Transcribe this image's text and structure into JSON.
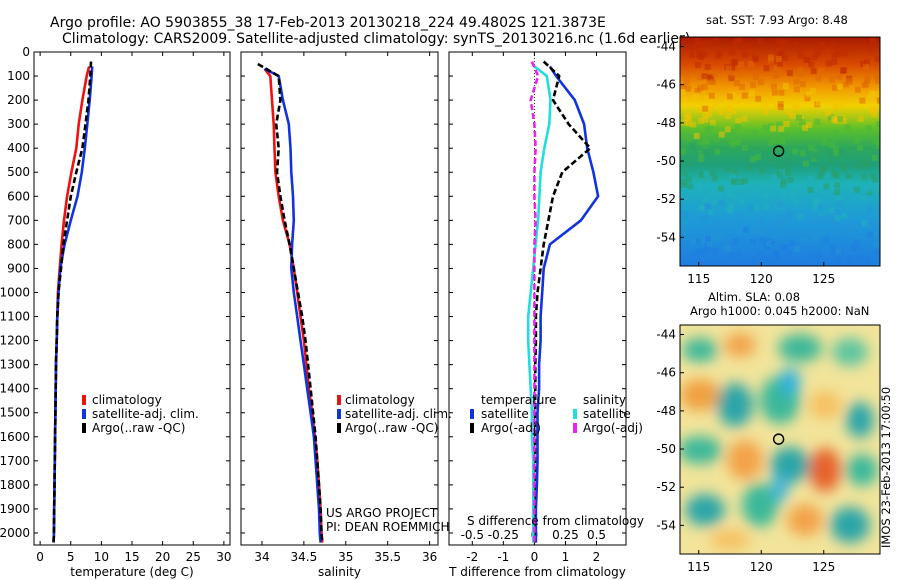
{
  "header": {
    "title_line1": "Argo profile: AO 5903855_38 17-Feb-2013 20130218_224 49.4802S 121.3873E",
    "title_line2": "Climatology: CARS2009. Satellite-adjusted climatology: synTS_20130216.nc (1.6d earlier)"
  },
  "credits": {
    "project": "US ARGO PROJECT",
    "pi": "PI: DEAN ROEMMICH",
    "stamp": "IMOS 23-Feb-2013 17:00:50"
  },
  "colors": {
    "climatology": "#ee1111",
    "satellite": "#1133dd",
    "argo": "#000000",
    "sal_satellite": "#22dddd",
    "sal_argo": "#ee22ee"
  },
  "chart_data": [
    {
      "type": "line",
      "id": "temperature",
      "xlabel": "temperature (deg C)",
      "xlim": [
        -1,
        31
      ],
      "ylim": [
        2050,
        0
      ],
      "xticks": [
        0,
        5,
        10,
        15,
        20,
        25,
        30
      ],
      "yticks": [
        0,
        100,
        200,
        300,
        400,
        500,
        600,
        700,
        800,
        900,
        1000,
        1100,
        1200,
        1300,
        1400,
        1500,
        1600,
        1700,
        1800,
        1900,
        2000
      ],
      "legend": [
        "climatology",
        "satellite-adj. clim.",
        "Argo(..raw -QC)"
      ],
      "series": [
        {
          "name": "climatology",
          "color": "#ee1111",
          "style": "solid",
          "x": [
            8.0,
            7.6,
            6.9,
            6.3,
            5.9,
            5.1,
            4.4,
            3.9,
            3.5,
            3.2,
            2.9,
            2.8,
            2.7,
            2.6,
            2.55,
            2.5,
            2.45,
            2.4,
            2.35,
            2.3,
            2.25,
            2.2
          ],
          "depth": [
            60,
            100,
            200,
            300,
            400,
            500,
            600,
            700,
            800,
            900,
            1000,
            1100,
            1200,
            1300,
            1400,
            1500,
            1600,
            1700,
            1800,
            1900,
            2000,
            2040
          ]
        },
        {
          "name": "satellite-adj. clim.",
          "color": "#1133dd",
          "style": "solid",
          "x": [
            8.5,
            8.4,
            8.1,
            7.7,
            7.3,
            6.8,
            6.1,
            5.0,
            4.0,
            3.3,
            3.0,
            2.8,
            2.7,
            2.6,
            2.55,
            2.5,
            2.45,
            2.4,
            2.35,
            2.3,
            2.25,
            2.2
          ],
          "depth": [
            60,
            100,
            200,
            300,
            400,
            500,
            600,
            700,
            800,
            900,
            1000,
            1100,
            1200,
            1300,
            1400,
            1500,
            1600,
            1700,
            1800,
            1900,
            2000,
            2040
          ]
        },
        {
          "name": "Argo(..raw -QC)",
          "color": "#000000",
          "style": "dashed",
          "x": [
            8.3,
            8.2,
            7.9,
            7.4,
            6.9,
            5.9,
            5.0,
            4.4,
            3.8,
            3.4,
            3.0,
            2.8,
            2.7,
            2.6,
            2.55,
            2.5,
            2.45,
            2.4,
            2.35,
            2.3,
            2.25,
            2.2
          ],
          "depth": [
            40,
            100,
            200,
            300,
            400,
            500,
            600,
            700,
            800,
            900,
            1000,
            1100,
            1200,
            1300,
            1400,
            1500,
            1600,
            1700,
            1800,
            1900,
            2000,
            2040
          ]
        }
      ]
    },
    {
      "type": "line",
      "id": "salinity",
      "xlabel": "salinity",
      "xlim": [
        33.75,
        36.1
      ],
      "ylim": [
        2050,
        0
      ],
      "xticks": [
        34,
        34.5,
        35,
        35.5,
        36
      ],
      "legend": [
        "climatology",
        "satellite-adj. clim.",
        "Argo(..raw -QC)"
      ],
      "series": [
        {
          "name": "climatology",
          "color": "#ee1111",
          "style": "solid",
          "x": [
            34.03,
            34.1,
            34.12,
            34.14,
            34.15,
            34.16,
            34.2,
            34.25,
            34.33,
            34.38,
            34.42,
            34.46,
            34.5,
            34.53,
            34.56,
            34.6,
            34.63,
            34.66,
            34.68,
            34.7,
            34.71,
            34.72
          ],
          "depth": [
            70,
            100,
            200,
            300,
            400,
            500,
            600,
            700,
            800,
            900,
            1000,
            1100,
            1200,
            1300,
            1400,
            1500,
            1600,
            1700,
            1800,
            1900,
            2000,
            2040
          ]
        },
        {
          "name": "satellite-adj. clim.",
          "color": "#1133dd",
          "style": "solid",
          "x": [
            34.03,
            34.2,
            34.25,
            34.32,
            34.34,
            34.35,
            34.37,
            34.38,
            34.36,
            34.35,
            34.38,
            34.42,
            34.46,
            34.5,
            34.54,
            34.58,
            34.62,
            34.64,
            34.66,
            34.68,
            34.69,
            34.7
          ],
          "depth": [
            70,
            100,
            200,
            300,
            400,
            500,
            600,
            700,
            800,
            900,
            1000,
            1100,
            1200,
            1300,
            1400,
            1500,
            1600,
            1700,
            1800,
            1900,
            2000,
            2040
          ]
        },
        {
          "name": "Argo(..raw -QC)",
          "color": "#000000",
          "style": "dashed",
          "x": [
            33.95,
            34.2,
            34.22,
            34.17,
            34.2,
            34.18,
            34.22,
            34.27,
            34.33,
            34.38,
            34.43,
            34.48,
            34.52,
            34.55,
            34.58,
            34.61,
            34.64,
            34.66,
            34.68,
            34.7,
            34.71,
            34.72
          ],
          "depth": [
            50,
            100,
            200,
            300,
            400,
            500,
            600,
            700,
            800,
            900,
            1000,
            1100,
            1200,
            1300,
            1400,
            1500,
            1600,
            1700,
            1800,
            1900,
            2000,
            2040
          ]
        }
      ]
    },
    {
      "type": "line",
      "id": "difference",
      "xlabel": "T difference from climatology",
      "xlabel_top": "S difference from climatology",
      "xlim": [
        -2.75,
        2.95
      ],
      "ylim": [
        2050,
        0
      ],
      "xticks": [
        -2,
        -1,
        0,
        1,
        2
      ],
      "xticks_top_labels": [
        "-0.5",
        "-0.25",
        "0",
        "0.25",
        "0.5"
      ],
      "legend_groups": [
        {
          "title": "temperature",
          "items": [
            "satellite",
            "Argo(-adj)"
          ]
        },
        {
          "title": "salinity",
          "items": [
            "satellite",
            "Argo(-adj)"
          ]
        }
      ],
      "series": [
        {
          "name": "temperature satellite",
          "color": "#1133dd",
          "style": "solid",
          "x": [
            0.5,
            0.7,
            1.3,
            1.6,
            1.7,
            1.9,
            2.05,
            1.5,
            0.5,
            0.3,
            0.25,
            0.2,
            0.2,
            0.15,
            0.15,
            0.1,
            0.1,
            0.1,
            0.08,
            0.05,
            0.05,
            0.05
          ],
          "depth": [
            60,
            100,
            200,
            300,
            400,
            500,
            600,
            700,
            800,
            900,
            1000,
            1100,
            1200,
            1300,
            1400,
            1500,
            1600,
            1700,
            1800,
            1900,
            2000,
            2040
          ]
        },
        {
          "name": "temperature Argo(-adj)",
          "color": "#000000",
          "style": "dashed",
          "x": [
            0.3,
            0.8,
            0.6,
            1.1,
            1.8,
            0.9,
            0.6,
            0.45,
            0.3,
            0.2,
            0.1,
            0.05,
            0.05,
            0.03,
            0.03,
            0.02,
            0.02,
            0.02,
            0.01,
            0.01,
            0.0,
            0.0
          ],
          "depth": [
            40,
            100,
            200,
            300,
            400,
            500,
            600,
            700,
            800,
            900,
            1000,
            1100,
            1200,
            1300,
            1400,
            1500,
            1600,
            1700,
            1800,
            1900,
            2000,
            2040
          ]
        },
        {
          "name": "salinity satellite",
          "color": "#22dddd",
          "style": "solid",
          "x": [
            0.0,
            0.1,
            0.13,
            0.12,
            0.08,
            0.05,
            0.04,
            0.03,
            0.01,
            -0.01,
            -0.03,
            -0.05,
            -0.05,
            -0.04,
            -0.03,
            -0.02,
            -0.02,
            -0.01,
            -0.01,
            -0.01,
            -0.01,
            -0.01
          ],
          "depth": [
            60,
            100,
            200,
            300,
            400,
            500,
            600,
            700,
            800,
            900,
            1000,
            1100,
            1200,
            1300,
            1400,
            1500,
            1600,
            1700,
            1800,
            1900,
            2000,
            2040
          ]
        },
        {
          "name": "salinity Argo(-adj)",
          "color": "#ee22ee",
          "style": "dashed",
          "x": [
            -0.02,
            0.03,
            -0.03,
            0.0,
            0.01,
            0.0,
            0.0,
            0.01,
            0.0,
            0.0,
            0.0,
            0.0,
            0.0,
            0.0,
            0.0,
            0.0,
            0.0,
            0.0,
            0.0,
            0.0,
            0.0,
            0.0
          ],
          "depth": [
            40,
            100,
            200,
            300,
            400,
            500,
            600,
            700,
            800,
            900,
            1000,
            1100,
            1200,
            1300,
            1400,
            1500,
            1600,
            1700,
            1800,
            1900,
            2000,
            2040
          ]
        }
      ]
    },
    {
      "type": "heatmap",
      "id": "sst_map",
      "title": "sat. SST: 7.93 Argo: 8.48",
      "xlim": [
        113.5,
        129.5
      ],
      "ylim": [
        -55.5,
        -43.5
      ],
      "xticks": [
        115,
        120,
        125
      ],
      "yticks": [
        -44,
        -46,
        -48,
        -50,
        -52,
        -54
      ],
      "marker": {
        "lon": 121.39,
        "lat": -49.48
      }
    },
    {
      "type": "heatmap",
      "id": "sla_map",
      "title": "Altim. SLA: 0.08",
      "subtitle": "Argo h1000: 0.045 h2000: NaN",
      "xlim": [
        113.5,
        129.5
      ],
      "ylim": [
        -55.5,
        -43.5
      ],
      "xticks": [
        115,
        120,
        125
      ],
      "yticks": [
        -44,
        -46,
        -48,
        -50,
        -52,
        -54
      ],
      "marker": {
        "lon": 121.39,
        "lat": -49.48
      }
    }
  ]
}
